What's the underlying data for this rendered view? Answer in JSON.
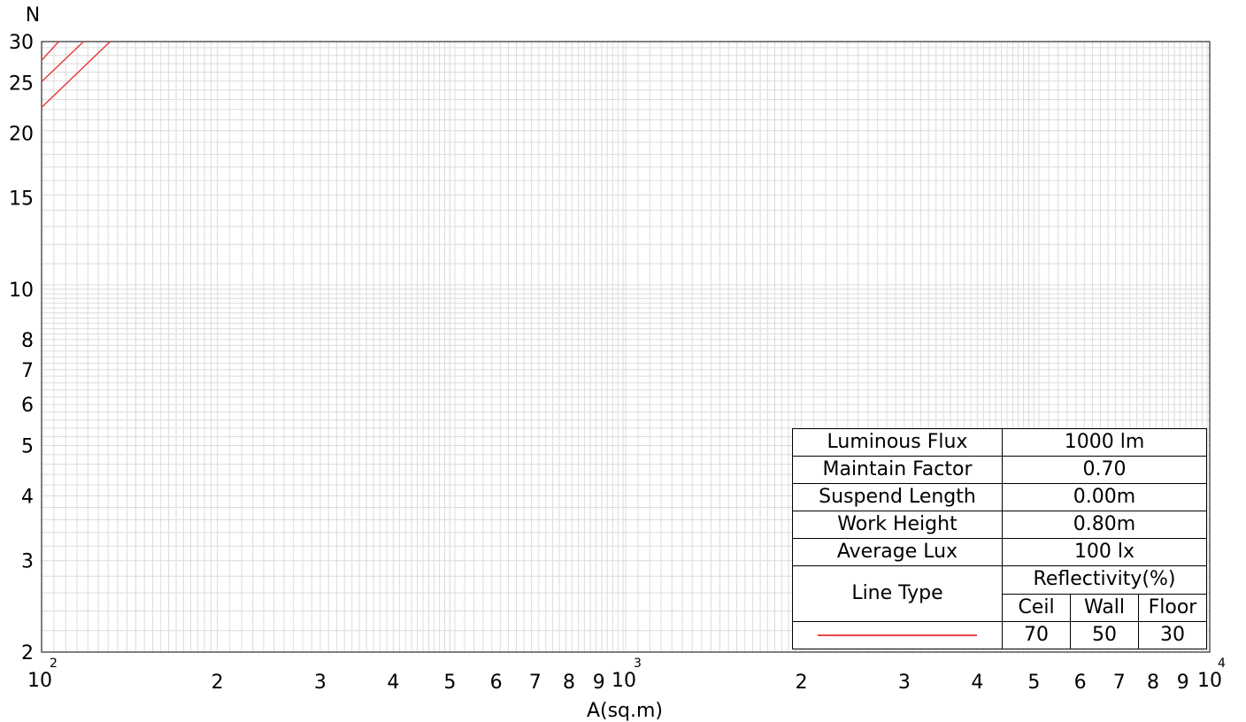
{
  "chart_data": {
    "type": "line",
    "title": "",
    "xlabel": "A(sq.m)",
    "ylabel": "N",
    "xscale": "log",
    "yscale": "log",
    "xlim": [
      100,
      10000
    ],
    "ylim": [
      2,
      30
    ],
    "grid": true,
    "x_ticks": [
      {
        "value": 100,
        "base": "10",
        "exp": "2"
      },
      {
        "value": 200,
        "label": "2"
      },
      {
        "value": 300,
        "label": "3"
      },
      {
        "value": 400,
        "label": "4"
      },
      {
        "value": 500,
        "label": "5"
      },
      {
        "value": 600,
        "label": "6"
      },
      {
        "value": 700,
        "label": "7"
      },
      {
        "value": 800,
        "label": "8"
      },
      {
        "value": 900,
        "label": "9"
      },
      {
        "value": 1000,
        "base": "10",
        "exp": "3"
      },
      {
        "value": 2000,
        "label": "2"
      },
      {
        "value": 3000,
        "label": "3"
      },
      {
        "value": 4000,
        "label": "4"
      },
      {
        "value": 5000,
        "label": "5"
      },
      {
        "value": 6000,
        "label": "6"
      },
      {
        "value": 7000,
        "label": "7"
      },
      {
        "value": 8000,
        "label": "8"
      },
      {
        "value": 9000,
        "label": "9"
      },
      {
        "value": 10000,
        "base": "10",
        "exp": "4"
      }
    ],
    "y_ticks": [
      {
        "value": 2,
        "label": "2"
      },
      {
        "value": 3,
        "label": "3"
      },
      {
        "value": 4,
        "label": "4"
      },
      {
        "value": 5,
        "label": "5"
      },
      {
        "value": 6,
        "label": "6"
      },
      {
        "value": 7,
        "label": "7"
      },
      {
        "value": 8,
        "label": "8"
      },
      {
        "value": 10,
        "label": "10"
      },
      {
        "value": 15,
        "label": "15"
      },
      {
        "value": 20,
        "label": "20"
      },
      {
        "value": 25,
        "label": "25"
      },
      {
        "value": 30,
        "label": "30"
      }
    ],
    "series_color": "#e83030",
    "series": [
      {
        "points": [
          [
            100,
            27.6
          ],
          [
            107,
            30
          ]
        ]
      },
      {
        "points": [
          [
            100,
            25.1
          ],
          [
            118,
            30
          ]
        ]
      },
      {
        "points": [
          [
            100,
            22.4
          ],
          [
            131,
            30
          ]
        ]
      }
    ]
  },
  "info_table": {
    "rows": [
      {
        "label": "Luminous Flux",
        "value": "1000 lm"
      },
      {
        "label": "Maintain Factor",
        "value": "0.70"
      },
      {
        "label": "Suspend Length",
        "value": "0.00m"
      },
      {
        "label": "Work Height",
        "value": "0.80m"
      },
      {
        "label": "Average Lux",
        "value": "100 lx"
      }
    ],
    "line_type_label": "Line Type",
    "reflectivity_label": "Reflectivity(%)",
    "ceil_label": "Ceil",
    "wall_label": "Wall",
    "floor_label": "Floor",
    "ceil_value": "70",
    "wall_value": "50",
    "floor_value": "30",
    "line_color": "#e84848"
  }
}
